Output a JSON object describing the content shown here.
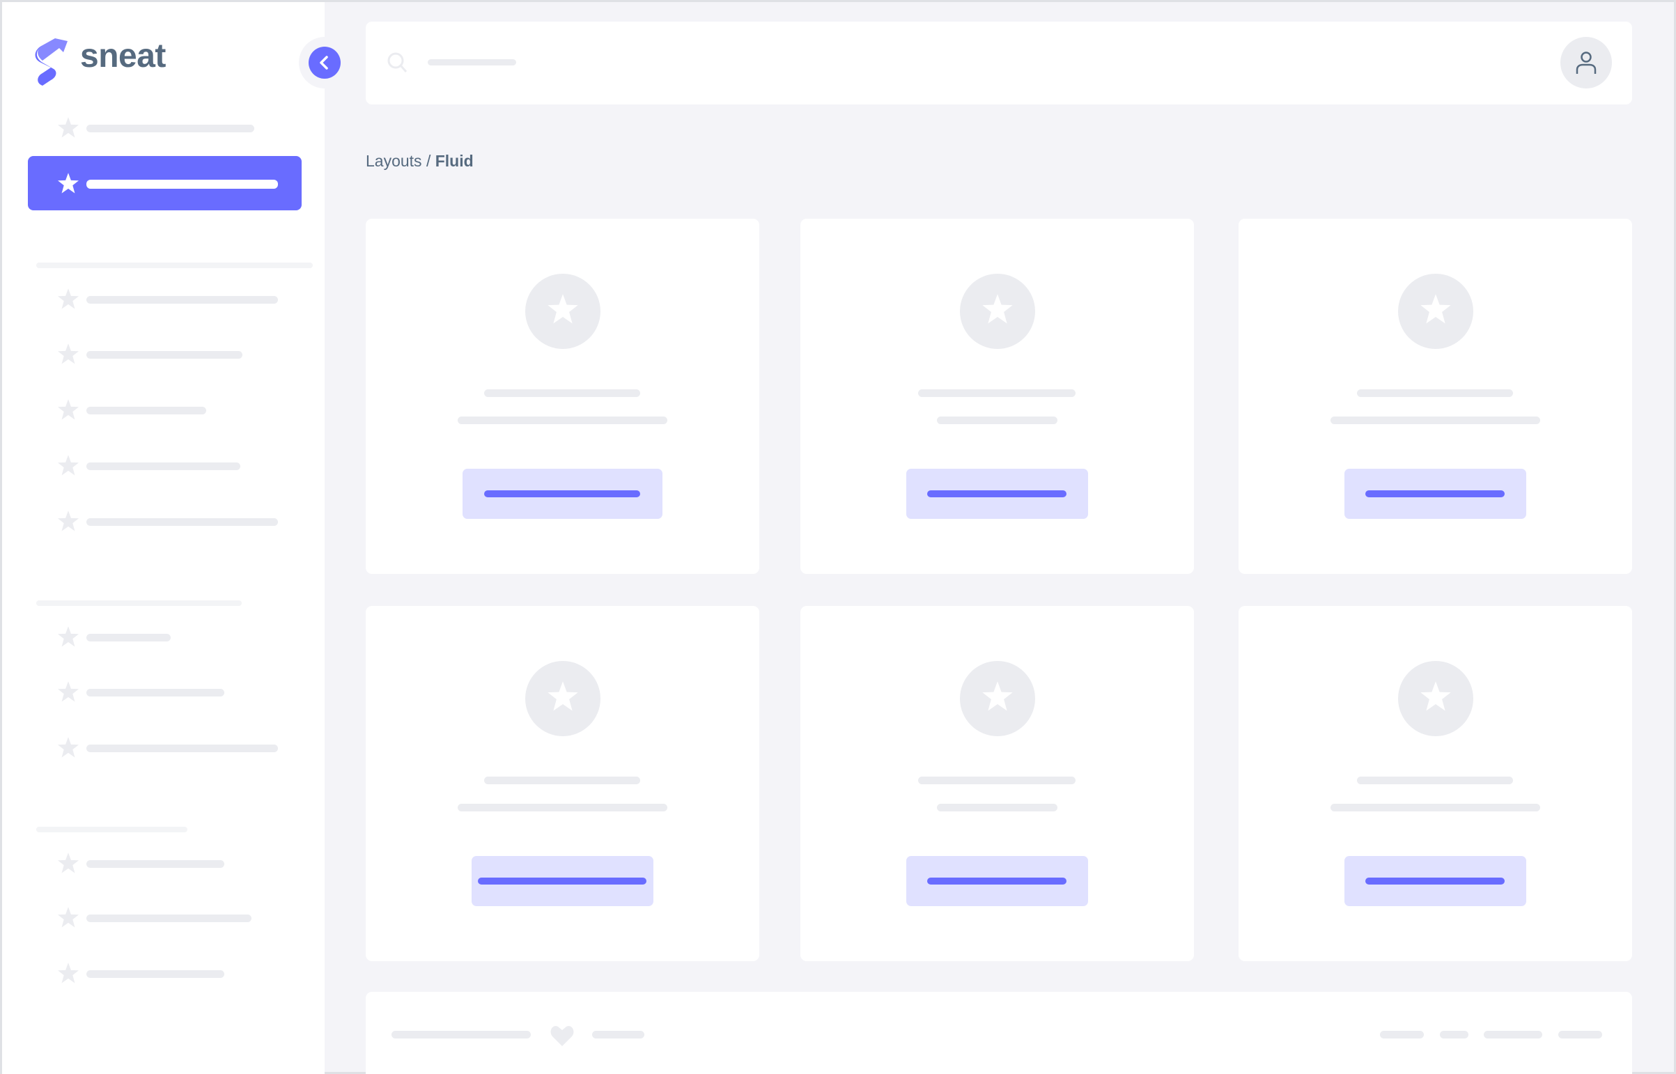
{
  "brand": {
    "name": "sneat",
    "color": "#696cff",
    "text_color": "#566a7f"
  },
  "breadcrumb": {
    "parent": "Layouts",
    "separator": "/",
    "current": "Fluid"
  },
  "icons": {
    "logo": "sneat-logo",
    "toggle": "chevron-left-icon",
    "search": "search-icon",
    "avatar": "user-icon",
    "nav": "star-icon",
    "card": "star-icon",
    "footer": "heart-icon"
  },
  "sidebar": {
    "active_index": 1,
    "item_count": 13,
    "sections": 3
  },
  "cards": {
    "count": 6
  }
}
